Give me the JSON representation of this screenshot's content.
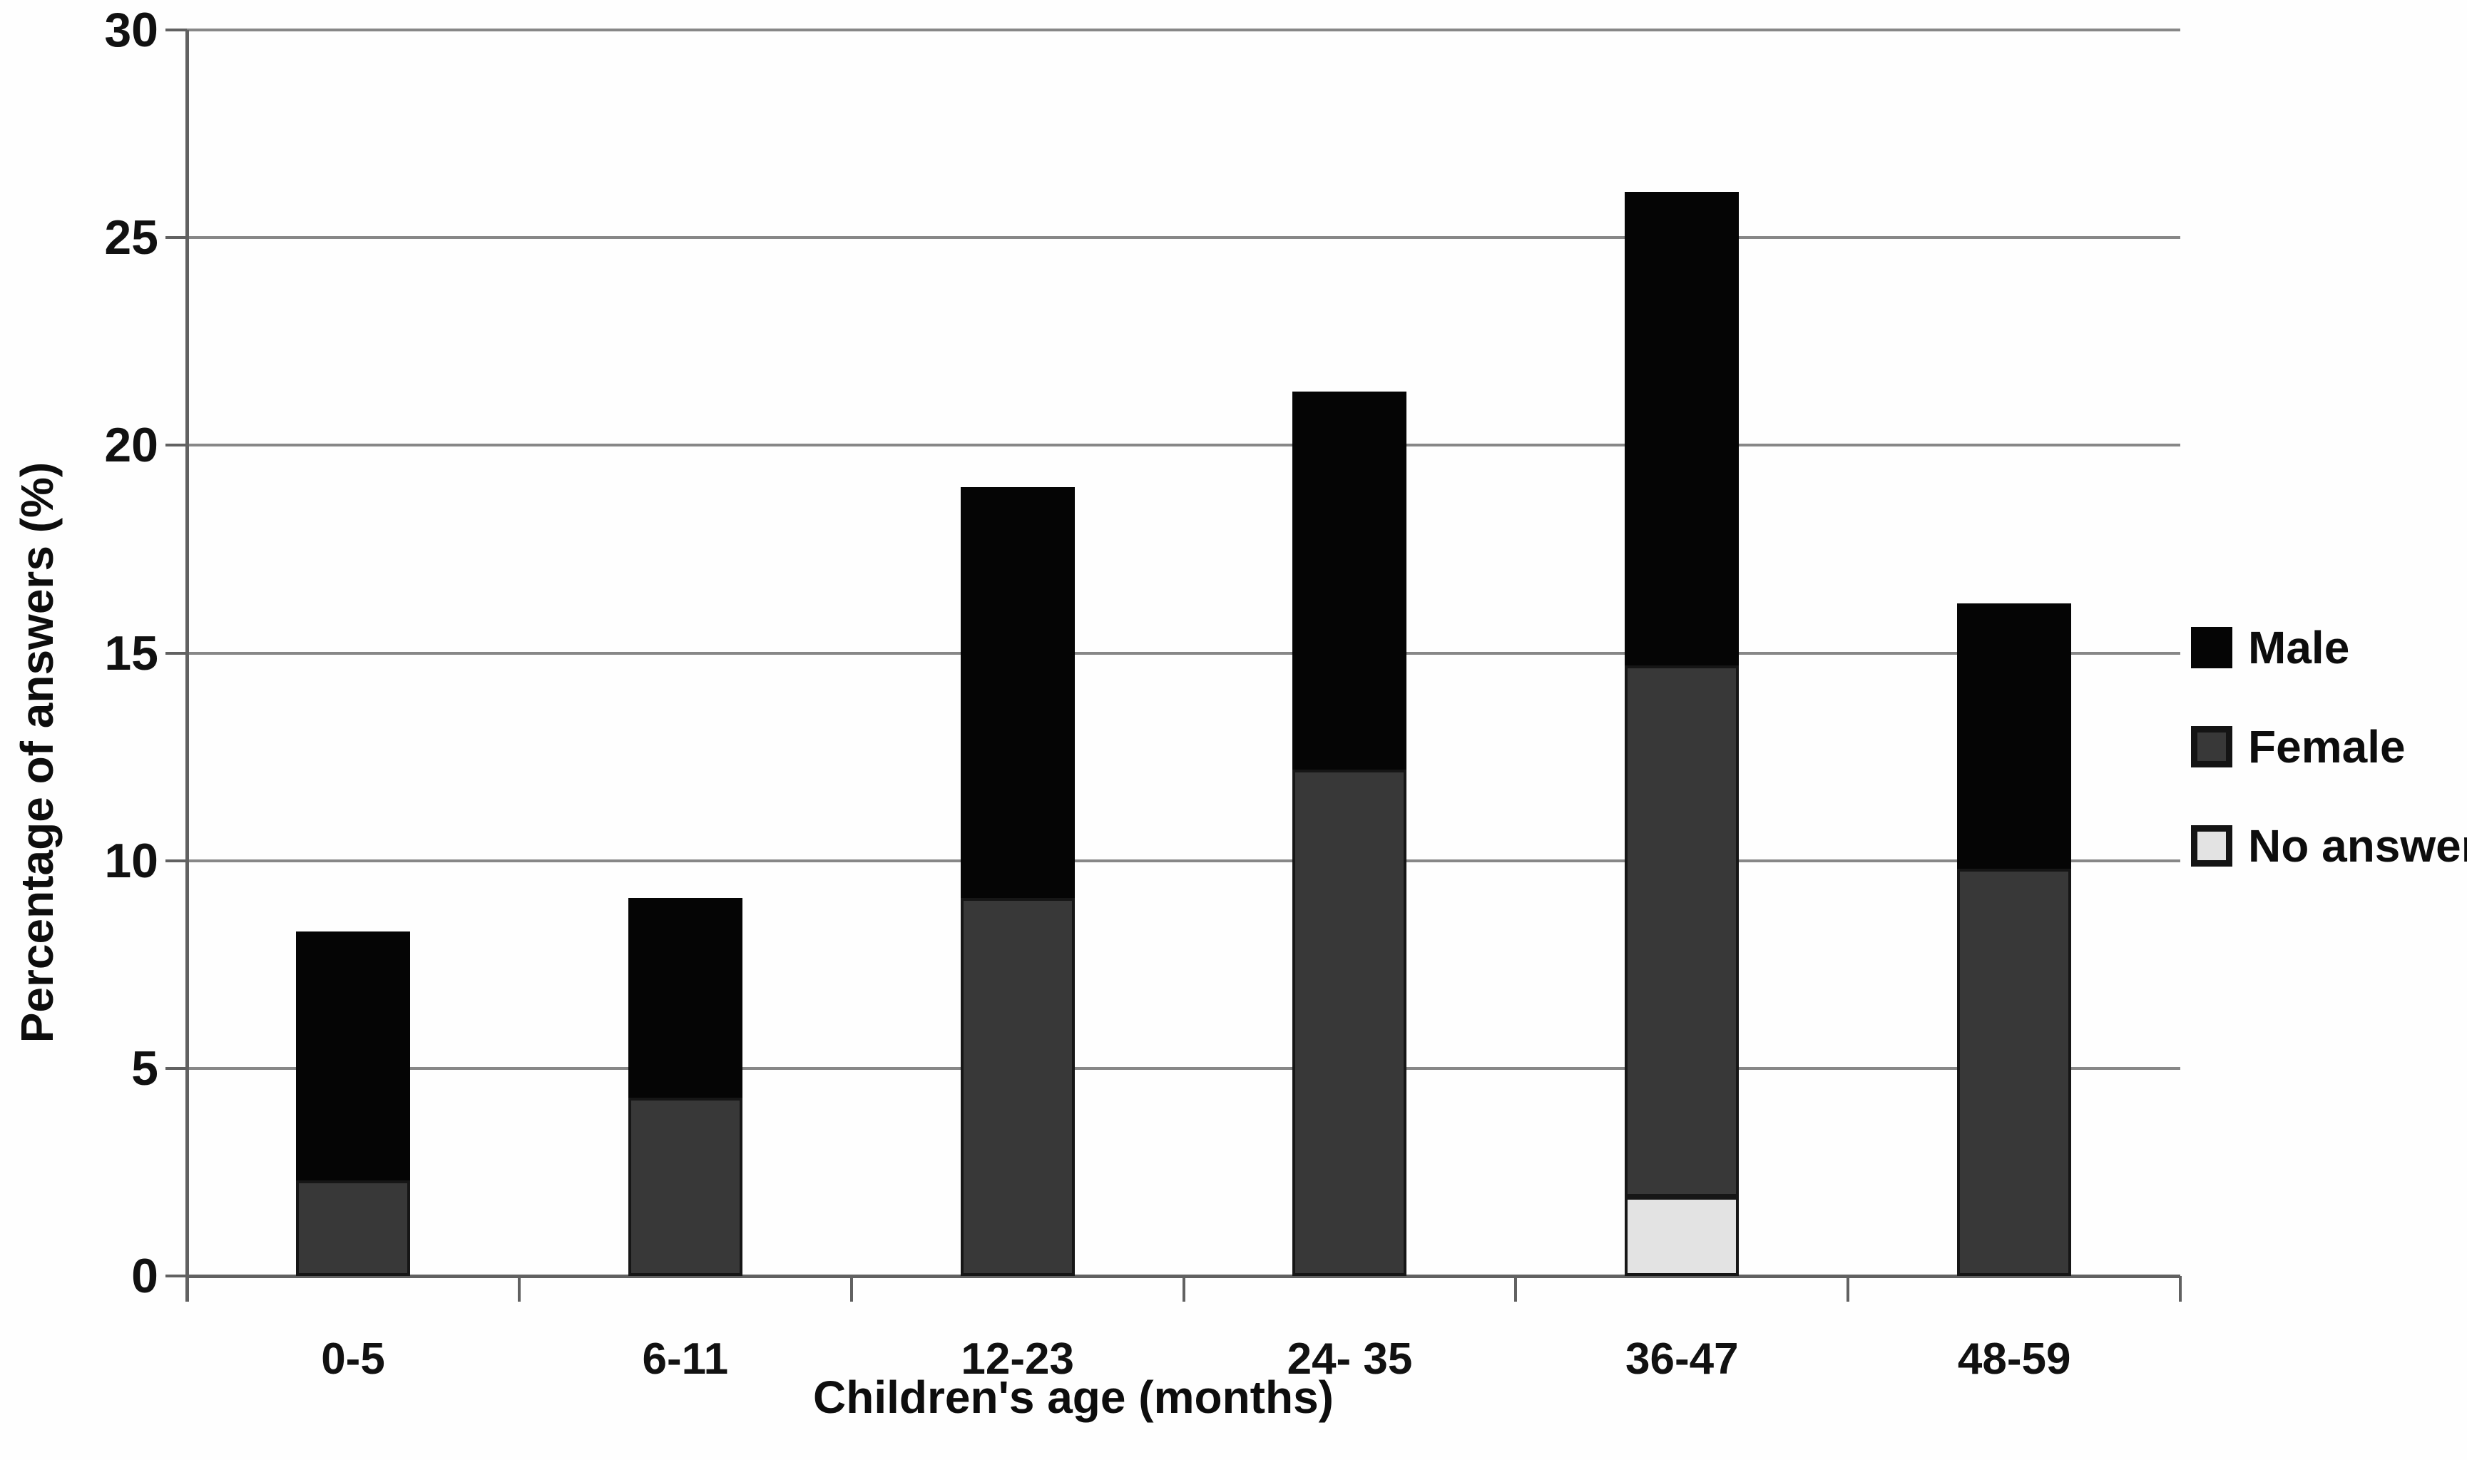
{
  "chart_data": {
    "type": "bar",
    "stacked": true,
    "title": "",
    "xlabel": "Children's age (months)",
    "ylabel": "Percentage of answers (%)",
    "categories": [
      "0-5",
      "6-11",
      "12-23",
      "24- 35",
      "36-47",
      "48-59"
    ],
    "series": [
      {
        "name": "No answer",
        "color": "#e3e3e3",
        "border": "#161616",
        "values": [
          0,
          0,
          0,
          0,
          1.9,
          0
        ]
      },
      {
        "name": "Female",
        "color": "#383838",
        "border": "#161616",
        "values": [
          2.3,
          4.3,
          9.1,
          12.2,
          12.8,
          9.8
        ]
      },
      {
        "name": "Male",
        "color": "#050505",
        "border": "#050505",
        "values": [
          6.0,
          4.8,
          9.9,
          9.1,
          11.4,
          6.4
        ]
      }
    ],
    "stack_totals": [
      8.3,
      9.1,
      19.0,
      21.3,
      26.1,
      16.2
    ],
    "ylim": [
      0,
      30
    ],
    "yticks": [
      0,
      5,
      10,
      15,
      20,
      25,
      30
    ],
    "ytick_labels": [
      "0",
      "5",
      "10",
      "15",
      "20",
      "25",
      "30"
    ],
    "grid": true,
    "legend_position": "right",
    "legend": [
      {
        "label": "Male",
        "color": "#050505",
        "border": "#050505"
      },
      {
        "label": "Female",
        "color": "#383838",
        "border": "#141414"
      },
      {
        "label": "No answer",
        "color": "#e3e3e3",
        "border": "#141414"
      }
    ]
  },
  "colors": {
    "gridline": "#878787",
    "axis": "#616161",
    "text": "#111111",
    "background": "#fefefe"
  }
}
